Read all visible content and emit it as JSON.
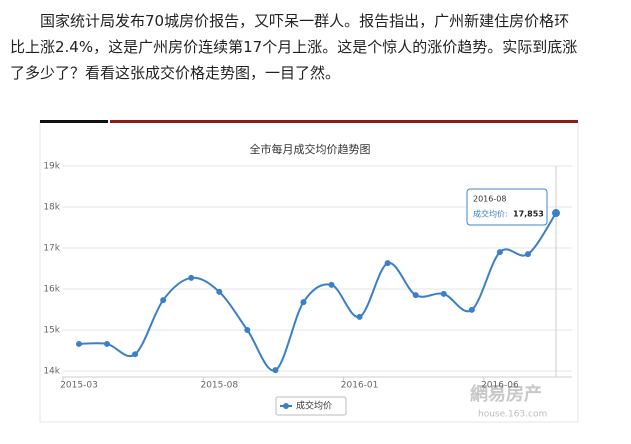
{
  "paragraph": [
    "国家统计局发布70城房价报告，又吓呆一群人。报告指出，广州新建住房价格环",
    "比上涨2.4%，这是广州房价连续第17个月上涨。这是个惊人的涨价趋势。实际到底涨",
    "了多少了？看看这张成交价格走势图，一目了然。"
  ],
  "chart_data": {
    "type": "line",
    "title": "全市每月成交均价趋势图",
    "categories": [
      "2015-03",
      null,
      null,
      null,
      null,
      "2015-08",
      null,
      null,
      null,
      null,
      "2016-01",
      null,
      null,
      null,
      null,
      "2016-06",
      null,
      null
    ],
    "series": [
      {
        "name": "成交均价",
        "color": "#3a7fc8",
        "values": [
          14660,
          14660,
          14410,
          15730,
          16270,
          15930,
          15000,
          14020,
          15680,
          16100,
          15320,
          16630,
          15850,
          15880,
          15490,
          16900,
          16850,
          17853
        ]
      }
    ],
    "ylim": [
      14000,
      19000
    ],
    "yticks": [
      {
        "value": 14000,
        "label": "14k"
      },
      {
        "value": 15000,
        "label": "15k"
      },
      {
        "value": 16000,
        "label": "16k"
      },
      {
        "value": 17000,
        "label": "17k"
      },
      {
        "value": 18000,
        "label": "18k"
      },
      {
        "value": 19000,
        "label": "19k"
      }
    ],
    "grid": true,
    "tooltip": {
      "category": "2016-08",
      "label": "成交均价:",
      "value": "17,853"
    }
  },
  "watermark": {
    "brand": "網易房产",
    "url": "house.163.com"
  }
}
